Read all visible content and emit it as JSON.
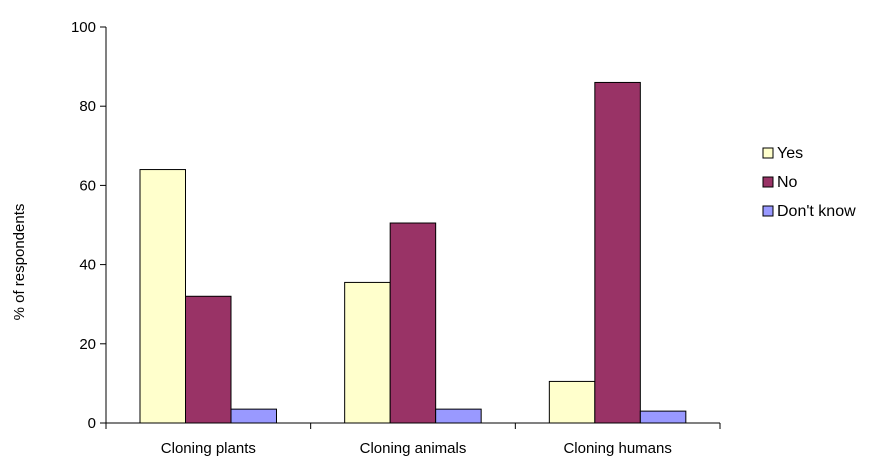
{
  "chart_data": {
    "type": "bar",
    "categories": [
      "Cloning plants",
      "Cloning animals",
      "Cloning humans"
    ],
    "series": [
      {
        "name": "Yes",
        "color": "#FFFFCC",
        "values": [
          64,
          35.5,
          10.5
        ]
      },
      {
        "name": "No",
        "color": "#993366",
        "values": [
          32,
          50.5,
          86
        ]
      },
      {
        "name": "Don't know",
        "color": "#9999FF",
        "values": [
          3.5,
          3.5,
          3
        ]
      }
    ],
    "ylabel": "% of respondents",
    "xlabel": "",
    "ylim": [
      0,
      100
    ],
    "yticks": [
      0,
      20,
      40,
      60,
      80,
      100
    ],
    "grid": false,
    "legend": "right"
  }
}
